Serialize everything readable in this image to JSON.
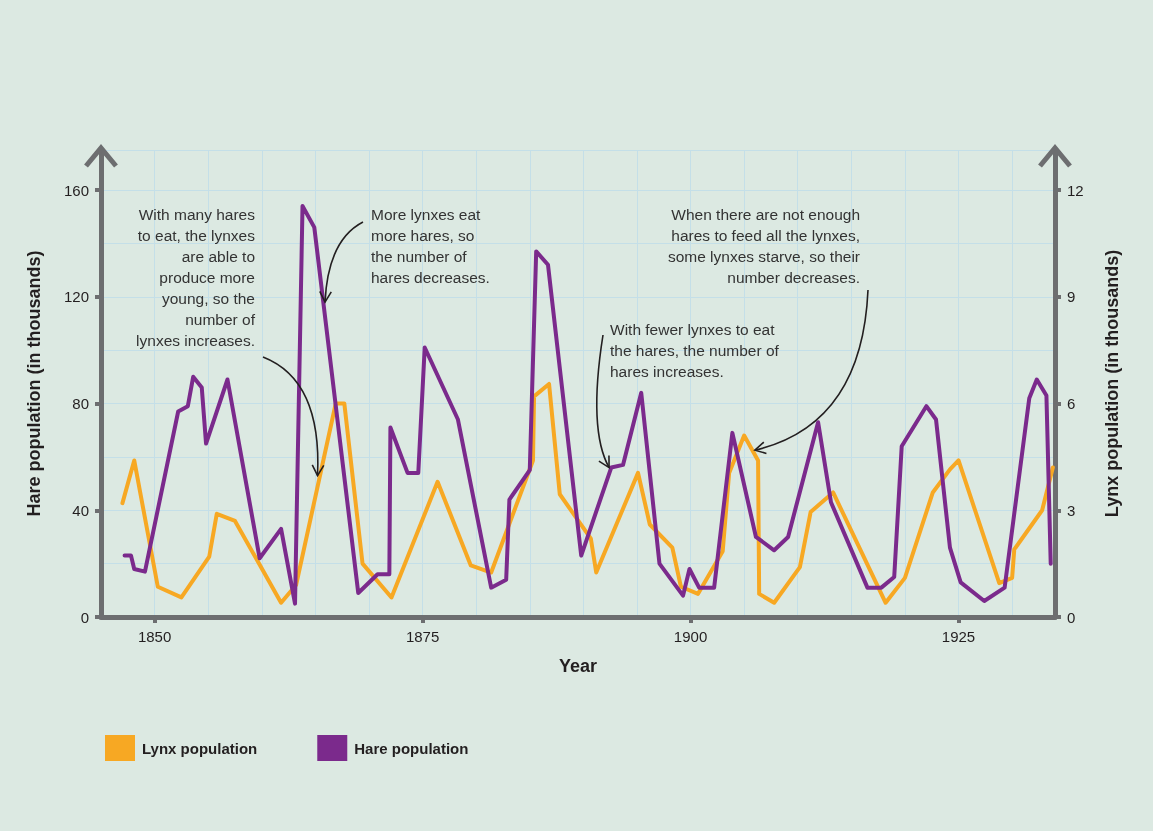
{
  "chart_data": {
    "type": "line",
    "xlabel": "Year",
    "ylabel": "Hare population (in thousands)",
    "y2label": "Lynx population (in thousands)",
    "xlim": [
      1845,
      1934
    ],
    "xticks": [
      1850,
      1875,
      1900,
      1925
    ],
    "ylim": [
      0,
      175
    ],
    "yticks": [
      0,
      40,
      80,
      120,
      160
    ],
    "y2lim": [
      0,
      13.125
    ],
    "y2ticks": [
      0,
      3,
      6,
      9,
      12
    ],
    "grid": true,
    "legend": "bottom left",
    "marker": "none",
    "line_style": "solid",
    "series": [
      {
        "name": "Lynx population",
        "color": "#f7a823",
        "axis": "y2",
        "x": [
          1847.0,
          1848.1,
          1850.3,
          1852.5,
          1855.1,
          1855.8,
          1857.5,
          1861.8,
          1863.2,
          1866.9,
          1867.7,
          1869.4,
          1872.1,
          1876.4,
          1879.5,
          1881.4,
          1885.3,
          1885.4,
          1886.8,
          1887.8,
          1890.7,
          1891.2,
          1895.1,
          1896.2,
          1898.3,
          1899.1,
          1900.7,
          1903.0,
          1903.6,
          1905.0,
          1906.3,
          1906.4,
          1907.8,
          1910.2,
          1911.2,
          1913.3,
          1918.2,
          1920.0,
          1922.6,
          1924.2,
          1925.0,
          1928.8,
          1930.0,
          1930.2,
          1932.8,
          1933.8
        ],
        "values": [
          3.2,
          4.4,
          0.85,
          0.55,
          1.7,
          2.9,
          2.7,
          0.4,
          0.9,
          6.0,
          6.0,
          1.5,
          0.55,
          3.8,
          1.45,
          1.25,
          4.4,
          6.2,
          6.55,
          3.45,
          2.2,
          1.25,
          4.05,
          2.6,
          1.95,
          0.85,
          0.65,
          1.85,
          4.05,
          5.1,
          4.4,
          0.65,
          0.4,
          1.4,
          2.95,
          3.5,
          0.4,
          1.1,
          3.5,
          4.15,
          4.4,
          0.95,
          1.1,
          1.9,
          3.0,
          4.2
        ]
      },
      {
        "name": "Hare population",
        "color": "#7b2a8c",
        "x": [
          1847.2,
          1847.8,
          1848.1,
          1849.1,
          1852.2,
          1853.1,
          1853.6,
          1854.4,
          1854.8,
          1856.8,
          1859.8,
          1861.8,
          1863.1,
          1863.8,
          1864.9,
          1869.0,
          1870.8,
          1871.9,
          1872.0,
          1873.6,
          1874.6,
          1875.2,
          1878.3,
          1881.4,
          1882.8,
          1883.1,
          1885.0,
          1885.6,
          1886.7,
          1889.8,
          1892.6,
          1893.7,
          1895.4,
          1897.1,
          1899.3,
          1899.9,
          1900.8,
          1902.2,
          1903.9,
          1906.1,
          1907.8,
          1909.1,
          1911.9,
          1913.1,
          1916.5,
          1917.8,
          1919.0,
          1919.7,
          1922.0,
          1922.9,
          1924.2,
          1925.2,
          1927.4,
          1929.3,
          1931.6,
          1932.3,
          1933.2,
          1933.6
        ],
        "values": [
          23,
          23,
          18,
          17,
          77,
          79,
          90,
          86,
          65,
          89,
          22,
          33,
          5,
          154,
          146,
          9,
          16,
          16,
          71,
          54,
          54,
          101,
          74,
          11,
          14,
          44,
          55,
          137,
          132,
          23,
          56,
          57,
          84,
          20,
          8,
          18,
          11,
          11,
          69,
          30,
          25,
          30,
          73,
          43,
          11,
          11,
          15,
          64,
          79,
          74,
          26,
          13,
          6,
          11,
          82,
          89,
          83,
          20
        ]
      }
    ],
    "annotations": [
      {
        "text": "With many hares\nto eat, the lynxes\nare able to\nproduce more\nyoung, so the\nnumber of\nlynxes increases.",
        "x": 1865.2,
        "y": 53
      },
      {
        "text": "More lynxes eat\nmore hares, so\nthe number of\nhares decreases.",
        "x": 1865.9,
        "y": 118
      },
      {
        "text": "With fewer lynxes to eat\nthe hares, the number of\nhares increases.",
        "x": 1892.4,
        "y": 56
      },
      {
        "text": "When there are not enough\nhares to feed all the lynxes,\nsome lynxes starve, so their\nnumber decreases.",
        "x": 1906.0,
        "y": 62.5
      }
    ]
  }
}
